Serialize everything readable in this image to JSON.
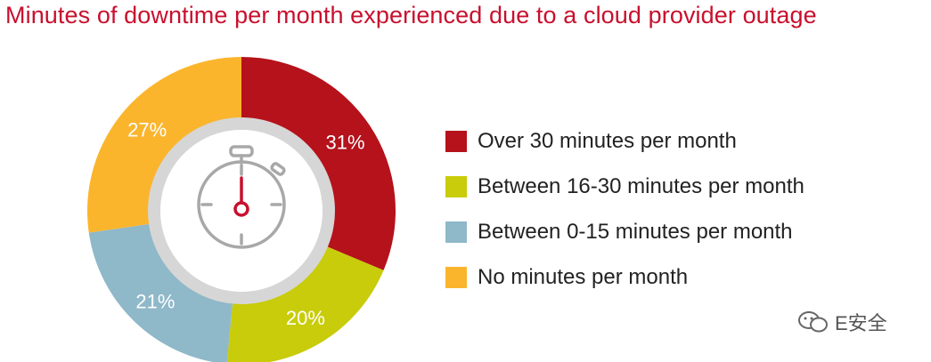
{
  "chart_data": {
    "type": "pie",
    "title": "Minutes of downtime per month experienced due to a cloud provider outage",
    "series": [
      {
        "name": "Over 30 minutes per month",
        "value": 31,
        "label": "31%",
        "color": "#b5121b"
      },
      {
        "name": "Between 16-30 minutes per month",
        "value": 20,
        "label": "20%",
        "color": "#c8cc0a"
      },
      {
        "name": "Between 0-15 minutes per month",
        "value": 21,
        "label": "21%",
        "color": "#8fb8c9"
      },
      {
        "name": "No minutes per month",
        "value": 27,
        "label": "27%",
        "color": "#fbb52d"
      }
    ],
    "legend_position": "right",
    "center_icon": "stopwatch-icon"
  },
  "watermark": {
    "icon": "wechat-icon",
    "text": "E安全"
  }
}
